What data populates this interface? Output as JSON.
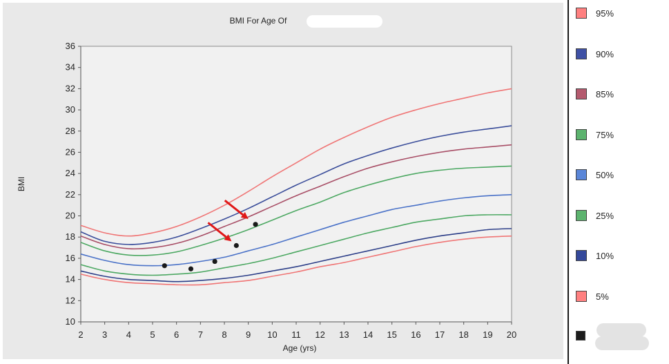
{
  "chart_data": {
    "type": "line",
    "title": "BMI For Age Of",
    "xlabel": "Age (yrs)",
    "ylabel": "BMI",
    "xlim": [
      2,
      20
    ],
    "ylim": [
      10,
      36
    ],
    "xticks": [
      2,
      3,
      4,
      5,
      6,
      7,
      8,
      9,
      10,
      11,
      12,
      13,
      14,
      15,
      16,
      17,
      18,
      19,
      20
    ],
    "yticks": [
      10,
      12,
      14,
      16,
      18,
      20,
      22,
      24,
      26,
      28,
      30,
      32,
      34,
      36
    ],
    "grid": false,
    "legend_position": "right",
    "series": [
      {
        "name": "95%",
        "color": "#f07575",
        "swatch": "#ff8080",
        "x": [
          2,
          3,
          4,
          5,
          6,
          7,
          8,
          9,
          10,
          11,
          12,
          13,
          14,
          15,
          16,
          17,
          18,
          19,
          20
        ],
        "values": [
          19.1,
          18.4,
          18.1,
          18.4,
          19.0,
          19.9,
          21.0,
          22.3,
          23.7,
          25.0,
          26.3,
          27.4,
          28.4,
          29.3,
          30.0,
          30.6,
          31.1,
          31.6,
          32.0
        ]
      },
      {
        "name": "90%",
        "color": "#3a4d9a",
        "swatch": "#3f51a5",
        "x": [
          2,
          3,
          4,
          5,
          6,
          7,
          8,
          9,
          10,
          11,
          12,
          13,
          14,
          15,
          16,
          17,
          18,
          19,
          20
        ],
        "values": [
          18.5,
          17.6,
          17.3,
          17.5,
          18.0,
          18.8,
          19.7,
          20.7,
          21.8,
          22.9,
          23.9,
          24.9,
          25.7,
          26.4,
          27.0,
          27.5,
          27.9,
          28.2,
          28.5
        ]
      },
      {
        "name": "85%",
        "color": "#a84e66",
        "swatch": "#b45a6e",
        "x": [
          2,
          3,
          4,
          5,
          6,
          7,
          8,
          9,
          10,
          11,
          12,
          13,
          14,
          15,
          16,
          17,
          18,
          19,
          20
        ],
        "values": [
          18.1,
          17.3,
          16.9,
          17.0,
          17.4,
          18.1,
          19.0,
          19.9,
          20.9,
          21.9,
          22.8,
          23.7,
          24.5,
          25.1,
          25.6,
          26.0,
          26.3,
          26.5,
          26.7
        ]
      },
      {
        "name": "75%",
        "color": "#4ca862",
        "swatch": "#5cb36e",
        "x": [
          2,
          3,
          4,
          5,
          6,
          7,
          8,
          9,
          10,
          11,
          12,
          13,
          14,
          15,
          16,
          17,
          18,
          19,
          20
        ],
        "values": [
          17.5,
          16.7,
          16.3,
          16.3,
          16.6,
          17.2,
          17.9,
          18.7,
          19.6,
          20.5,
          21.3,
          22.2,
          22.9,
          23.5,
          24.0,
          24.3,
          24.5,
          24.6,
          24.7
        ]
      },
      {
        "name": "50%",
        "color": "#4a72c8",
        "swatch": "#5a86d8",
        "x": [
          2,
          3,
          4,
          5,
          6,
          7,
          8,
          9,
          10,
          11,
          12,
          13,
          14,
          15,
          16,
          17,
          18,
          19,
          20
        ],
        "values": [
          16.4,
          15.8,
          15.4,
          15.3,
          15.4,
          15.7,
          16.1,
          16.7,
          17.3,
          18.0,
          18.7,
          19.4,
          20.0,
          20.6,
          21.0,
          21.4,
          21.7,
          21.9,
          22.0
        ]
      },
      {
        "name": "25%",
        "color": "#4ca862",
        "swatch": "#5cb36e",
        "x": [
          2,
          3,
          4,
          5,
          6,
          7,
          8,
          9,
          10,
          11,
          12,
          13,
          14,
          15,
          16,
          17,
          18,
          19,
          20
        ],
        "values": [
          15.4,
          14.8,
          14.5,
          14.4,
          14.5,
          14.7,
          15.1,
          15.5,
          16.0,
          16.6,
          17.2,
          17.8,
          18.4,
          18.9,
          19.4,
          19.7,
          20.0,
          20.1,
          20.1
        ]
      },
      {
        "name": "10%",
        "color": "#2c3e88",
        "swatch": "#34489a",
        "x": [
          2,
          3,
          4,
          5,
          6,
          7,
          8,
          9,
          10,
          11,
          12,
          13,
          14,
          15,
          16,
          17,
          18,
          19,
          20
        ],
        "values": [
          14.8,
          14.3,
          14.0,
          13.9,
          13.8,
          13.9,
          14.1,
          14.4,
          14.8,
          15.2,
          15.7,
          16.2,
          16.7,
          17.2,
          17.7,
          18.1,
          18.4,
          18.7,
          18.8
        ]
      },
      {
        "name": "5%",
        "color": "#f07575",
        "swatch": "#ff8080",
        "x": [
          2,
          3,
          4,
          5,
          6,
          7,
          8,
          9,
          10,
          11,
          12,
          13,
          14,
          15,
          16,
          17,
          18,
          19,
          20
        ],
        "values": [
          14.5,
          14.0,
          13.7,
          13.6,
          13.5,
          13.5,
          13.7,
          13.9,
          14.3,
          14.7,
          15.2,
          15.6,
          16.1,
          16.6,
          17.1,
          17.5,
          17.8,
          18.0,
          18.1
        ]
      }
    ],
    "points": {
      "color": "#1a1a1a",
      "swatch": "#1c1c1c",
      "x": [
        5.5,
        6.6,
        7.6,
        8.5,
        9.3
      ],
      "y": [
        15.3,
        15.0,
        15.7,
        17.2,
        19.2
      ]
    },
    "arrows": {
      "color": "#e01818",
      "targets": [
        {
          "x": 8.3,
          "y": 17.6
        },
        {
          "x": 9.0,
          "y": 19.7
        }
      ]
    }
  }
}
